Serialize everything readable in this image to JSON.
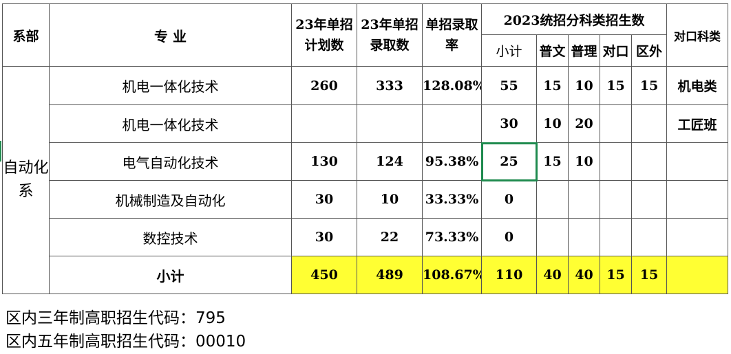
{
  "header": {
    "dept": "系部",
    "major": "专  业",
    "plan23": "23年单招计划数",
    "admit23": "23年单招录取数",
    "rate": "单招录取率",
    "unified": "2023统招分科类招生数",
    "subtotal": "小计",
    "puwen": "普文",
    "puli": "普理",
    "duikou": "对口",
    "quwai": "区外",
    "counterpart": "对口科类"
  },
  "department": "自动化系",
  "rows": [
    {
      "major": "机电一体化技术",
      "plan": "260",
      "admit": "333",
      "rate": "128.08%",
      "subtotal": "55",
      "puwen": "15",
      "puli": "10",
      "duikou": "15",
      "quwai": "15",
      "counterpart": "机电类"
    },
    {
      "major": "机电一体化技术",
      "plan": "",
      "admit": "",
      "rate": "",
      "subtotal": "30",
      "puwen": "10",
      "puli": "20",
      "duikou": "",
      "quwai": "",
      "counterpart": "工匠班"
    },
    {
      "major": "电气自动化技术",
      "plan": "130",
      "admit": "124",
      "rate": "95.38%",
      "subtotal": "25",
      "puwen": "15",
      "puli": "10",
      "duikou": "",
      "quwai": "",
      "counterpart": ""
    },
    {
      "major": "机械制造及自动化",
      "plan": "30",
      "admit": "10",
      "rate": "33.33%",
      "subtotal": "0",
      "puwen": "",
      "puli": "",
      "duikou": "",
      "quwai": "",
      "counterpart": ""
    },
    {
      "major": "数控技术",
      "plan": "30",
      "admit": "22",
      "rate": "73.33%",
      "subtotal": "0",
      "puwen": "",
      "puli": "",
      "duikou": "",
      "quwai": "",
      "counterpart": ""
    }
  ],
  "total": {
    "label": "小计",
    "plan": "450",
    "admit": "489",
    "rate": "108.67%",
    "subtotal": "110",
    "puwen": "40",
    "puli": "40",
    "duikou": "15",
    "quwai": "15",
    "counterpart": ""
  },
  "footer": {
    "line1": "区内三年制高职招生代码：795",
    "line2": "区内五年制高职招生代码：00010"
  },
  "colors": {
    "highlight": "#ffff33",
    "selection": "#1e8a4e",
    "border": "#555555"
  }
}
